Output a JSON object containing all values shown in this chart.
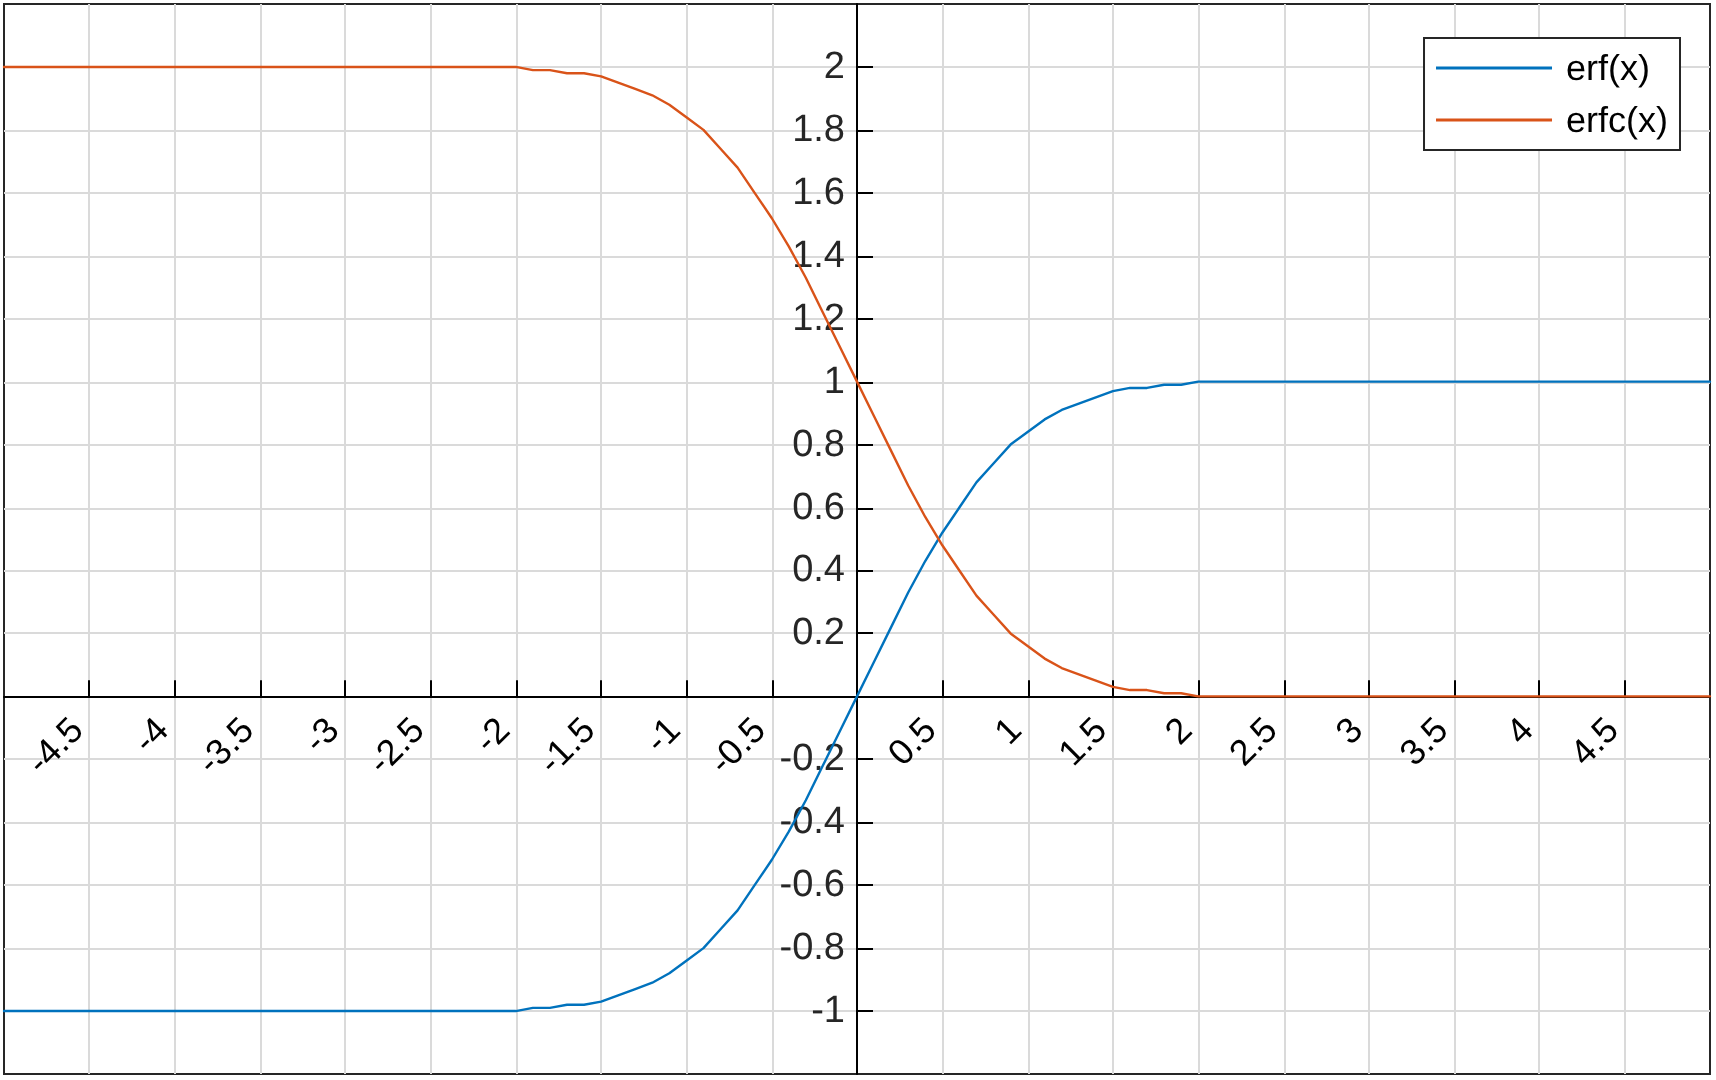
{
  "chart_data": {
    "type": "line",
    "x": [
      -5,
      -4,
      -3,
      -2.5,
      -2,
      -1.9,
      -1.8,
      -1.7,
      -1.6,
      -1.5,
      -1.4,
      -1.3,
      -1.2,
      -1.1,
      -1,
      -0.9,
      -0.8,
      -0.7,
      -0.6,
      -0.5,
      -0.4,
      -0.3,
      -0.2,
      -0.1,
      0,
      0.1,
      0.2,
      0.3,
      0.4,
      0.5,
      0.6,
      0.7,
      0.8,
      0.9,
      1,
      1.1,
      1.2,
      1.3,
      1.4,
      1.5,
      1.6,
      1.7,
      1.8,
      1.9,
      2,
      2.5,
      3,
      4,
      5
    ],
    "series": [
      {
        "name": "erf(x)",
        "color": "#0072bd",
        "values": [
          -1,
          -1,
          -1,
          -1,
          -1,
          -0.99,
          -0.99,
          -0.98,
          -0.98,
          -0.97,
          -0.95,
          -0.93,
          -0.91,
          -0.88,
          -0.84,
          -0.8,
          -0.74,
          -0.68,
          -0.6,
          -0.52,
          -0.43,
          -0.33,
          -0.22,
          -0.11,
          0,
          0.11,
          0.22,
          0.33,
          0.43,
          0.52,
          0.6,
          0.68,
          0.74,
          0.8,
          0.84,
          0.88,
          0.91,
          0.93,
          0.95,
          0.97,
          0.98,
          0.98,
          0.99,
          0.99,
          1,
          1,
          1,
          1,
          1
        ]
      },
      {
        "name": "erfc(x)",
        "color": "#d95319",
        "values": [
          2,
          2,
          2,
          2,
          2,
          1.99,
          1.99,
          1.98,
          1.98,
          1.97,
          1.95,
          1.93,
          1.91,
          1.88,
          1.84,
          1.8,
          1.74,
          1.68,
          1.6,
          1.52,
          1.43,
          1.33,
          1.22,
          1.11,
          1,
          0.89,
          0.78,
          0.67,
          0.57,
          0.48,
          0.4,
          0.32,
          0.26,
          0.2,
          0.16,
          0.12,
          0.09,
          0.07,
          0.05,
          0.03,
          0.02,
          0.02,
          0.01,
          0.01,
          0,
          0,
          0,
          0,
          0
        ]
      }
    ],
    "xlim": [
      -5,
      5
    ],
    "ylim": [
      -1.2,
      2.2
    ],
    "xticks": [
      -4.5,
      -4,
      -3.5,
      -3,
      -2.5,
      -2,
      -1.5,
      -1,
      -0.5,
      {
        "value": 0,
        "label": null
      },
      0.5,
      1,
      1.5,
      2,
      2.5,
      3,
      3.5,
      4,
      4.5
    ],
    "yticks": [
      -1,
      -0.8,
      -0.6,
      -0.4,
      -0.2,
      {
        "value": 0,
        "label": null
      },
      0.2,
      0.4,
      0.6,
      0.8,
      1,
      1.2,
      1.4,
      1.6,
      1.8,
      2
    ],
    "grid": true,
    "legend": "top right",
    "marker": "none"
  }
}
